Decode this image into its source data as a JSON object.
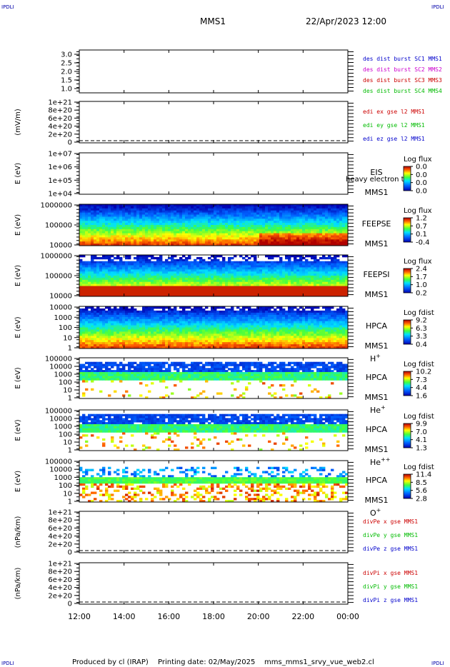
{
  "header": {
    "corner_left_top": "IPDLI",
    "corner_right_top": "IPDLI",
    "corner_left_bottom": "IPDLI",
    "corner_right_bottom": "IPDLI",
    "spacecraft": "MMS1",
    "datetime": "22/Apr/2023 12:00"
  },
  "footer": {
    "produced": "Produced by cl (IRAP)",
    "printing": "Printing date: 02/May/2025",
    "script": "mms_mms1_srvy_vue_web2.cl"
  },
  "chart_data": {
    "type": "multi-panel time series and spectrograms",
    "time_axis": {
      "ticks": [
        "12:00",
        "14:00",
        "16:00",
        "18:00",
        "20:00",
        "22:00",
        "00:00"
      ],
      "range_hours": [
        12,
        24
      ]
    },
    "panels": [
      {
        "id": "p1",
        "type": "line",
        "ylabel": "",
        "ticks": [
          "3.0",
          "2.5",
          "2.0",
          "1.5",
          "1.0"
        ],
        "legend": [
          {
            "label": "des dist burst SC1 MMS1",
            "color": "#0000cc"
          },
          {
            "label": "des dist burst SC2 MMS2",
            "color": "#cc00cc"
          },
          {
            "label": "des dist burst SC3 MMS3",
            "color": "#cc0000"
          },
          {
            "label": "des dist burst SC4 MMS4",
            "color": "#00bb00"
          }
        ],
        "dashed_zero": false
      },
      {
        "id": "p2",
        "type": "line",
        "ylabel": "(mV/m)",
        "ticks": [
          "1e+21",
          "8e+20",
          "6e+20",
          "4e+20",
          "2e+20",
          "0"
        ],
        "legend": [
          {
            "label": "edi ex gse l2 MMS1",
            "color": "#cc0000"
          },
          {
            "label": "edi ey gse l2 MMS1",
            "color": "#00bb00"
          },
          {
            "label": "edi ez gse l2 MMS1",
            "color": "#0000cc"
          }
        ],
        "dashed_zero": true
      },
      {
        "id": "p3",
        "type": "spectrogram",
        "ylabel": "E (eV)",
        "ticks": [
          "1e+07",
          "1e+06",
          "1e+05",
          "1e+04"
        ],
        "instrument": [
          "EIS",
          "MMS1"
        ],
        "species": "",
        "overlay_text": "heavy electron to",
        "colorbar_title": "Log flux",
        "colorbar_ticks": [
          "0.0",
          "0.0",
          "0.0",
          "0.0"
        ],
        "fill": "none"
      },
      {
        "id": "p4",
        "type": "spectrogram",
        "ylabel": "E (eV)",
        "ticks": [
          "1000000",
          "100000",
          "10000"
        ],
        "instrument": [
          "FEEPSE",
          "MMS1"
        ],
        "species": "",
        "colorbar_title": "Log flux",
        "colorbar_ticks": [
          "1.2",
          "0.7",
          "0.1",
          "-0.4"
        ],
        "fill": "dense"
      },
      {
        "id": "p5",
        "type": "spectrogram",
        "ylabel": "E (eV)",
        "ticks": [
          "1000000",
          "100000",
          "10000"
        ],
        "instrument": [
          "FEEPSI",
          "MMS1"
        ],
        "species": "",
        "colorbar_title": "Log flux",
        "colorbar_ticks": [
          "2.4",
          "1.7",
          "1.0",
          "0.2"
        ],
        "fill": "dense"
      },
      {
        "id": "p6",
        "type": "spectrogram",
        "ylabel": "E (eV)",
        "ticks": [
          "10000",
          "1000",
          "100",
          "10",
          "1"
        ],
        "instrument": [
          "HPCA",
          "MMS1"
        ],
        "species": "H",
        "species_charge": "+",
        "colorbar_title": "Log fdist",
        "colorbar_ticks": [
          "9.2",
          "6.3",
          "3.3",
          "0.4"
        ],
        "fill": "dense"
      },
      {
        "id": "p7",
        "type": "spectrogram",
        "ylabel": "E (eV)",
        "ticks": [
          "100000",
          "10000",
          "1000",
          "100",
          "10",
          "1"
        ],
        "instrument": [
          "HPCA",
          "MMS1"
        ],
        "species": "He",
        "species_charge": "+",
        "colorbar_title": "Log fdist",
        "colorbar_ticks": [
          "10.2",
          "7.3",
          "4.4",
          "1.6"
        ],
        "fill": "medium"
      },
      {
        "id": "p8",
        "type": "spectrogram",
        "ylabel": "E (eV)",
        "ticks": [
          "100000",
          "10000",
          "1000",
          "100",
          "10",
          "1"
        ],
        "instrument": [
          "HPCA",
          "MMS1"
        ],
        "species": "He",
        "species_charge": "++",
        "colorbar_title": "Log fdist",
        "colorbar_ticks": [
          "9.9",
          "7.0",
          "4.1",
          "1.3"
        ],
        "fill": "medium"
      },
      {
        "id": "p9",
        "type": "spectrogram",
        "ylabel": "E (eV)",
        "ticks": [
          "100000",
          "10000",
          "1000",
          "100",
          "10",
          "1"
        ],
        "instrument": [
          "HPCA",
          "MMS1"
        ],
        "species": "O",
        "species_charge": "+",
        "colorbar_title": "Log fdist",
        "colorbar_ticks": [
          "11.4",
          "8.5",
          "5.6",
          "2.8"
        ],
        "fill": "sparse"
      },
      {
        "id": "p10",
        "type": "line",
        "ylabel": "(nPa/km)",
        "ticks": [
          "1e+21",
          "8e+20",
          "6e+20",
          "4e+20",
          "2e+20",
          "0"
        ],
        "legend": [
          {
            "label": "divPe x gse MMS1",
            "color": "#cc0000"
          },
          {
            "label": "divPe y gse MMS1",
            "color": "#00bb00"
          },
          {
            "label": "divPe z gse MMS1",
            "color": "#0000cc"
          }
        ],
        "dashed_zero": true
      },
      {
        "id": "p11",
        "type": "line",
        "ylabel": "(nPa/km)",
        "ticks": [
          "1e+21",
          "8e+20",
          "6e+20",
          "4e+20",
          "2e+20",
          "0"
        ],
        "legend": [
          {
            "label": "divPi x gse MMS1",
            "color": "#cc0000"
          },
          {
            "label": "divPi y gse MMS1",
            "color": "#00bb00"
          },
          {
            "label": "divPi z gse MMS1",
            "color": "#0000cc"
          }
        ],
        "dashed_zero": true
      }
    ]
  }
}
